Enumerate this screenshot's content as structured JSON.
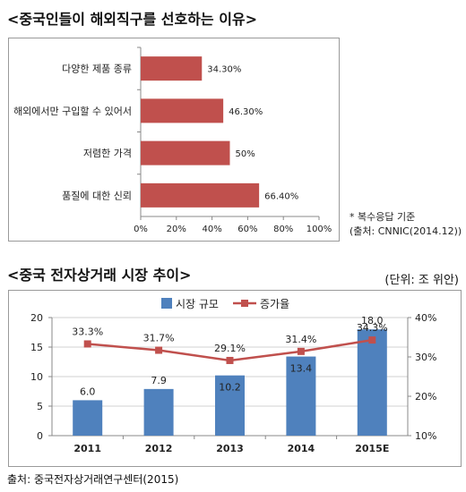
{
  "chart_data": [
    {
      "type": "bar",
      "orientation": "horizontal",
      "title": "<중국인들이 해외직구를 선호하는 이유>",
      "categories": [
        "다양한 제품 종류",
        "해외에서만 구입할 수 있어서",
        "저렴한 가격",
        "품질에 대한 신뢰"
      ],
      "values": [
        34.3,
        46.3,
        50,
        66.4
      ],
      "value_labels": [
        "34.30%",
        "46.30%",
        "50%",
        "66.40%"
      ],
      "xlim": [
        0,
        100
      ],
      "x_ticks": [
        "0%",
        "20%",
        "40%",
        "60%",
        "80%",
        "100%"
      ],
      "grid": false,
      "bar_color": "#c0504d",
      "notes": [
        "* 복수응답 기준",
        "(출처: CNNIC(2014.12))"
      ]
    },
    {
      "type": "bar+line",
      "title": "<중국 전자상거래 시장 추이>",
      "unit": "(단위: 조 위안)",
      "categories": [
        "2011",
        "2012",
        "2013",
        "2014",
        "2015E"
      ],
      "series": [
        {
          "name": "시장 규모",
          "type": "bar",
          "axis": "left",
          "values": [
            6.0,
            7.9,
            10.2,
            13.4,
            18.0
          ],
          "labels": [
            "6.0",
            "7.9",
            "10.2",
            "13.4",
            "18.0"
          ],
          "color": "#4f81bd"
        },
        {
          "name": "증가율",
          "type": "line",
          "axis": "right",
          "values": [
            33.3,
            31.7,
            29.1,
            31.4,
            34.3
          ],
          "labels": [
            "33.3%",
            "31.7%",
            "29.1%",
            "31.4%",
            "34.3%"
          ],
          "color": "#c0504d"
        }
      ],
      "ylim_left": [
        0,
        20
      ],
      "left_ticks": [
        "0",
        "5",
        "10",
        "15",
        "20"
      ],
      "ylim_right": [
        10,
        40
      ],
      "right_ticks": [
        "10%",
        "20%",
        "30%",
        "40%"
      ],
      "grid": "horizontal",
      "legend": "top-center",
      "source": "출처: 중국전자상거래연구센터(2015)"
    }
  ]
}
